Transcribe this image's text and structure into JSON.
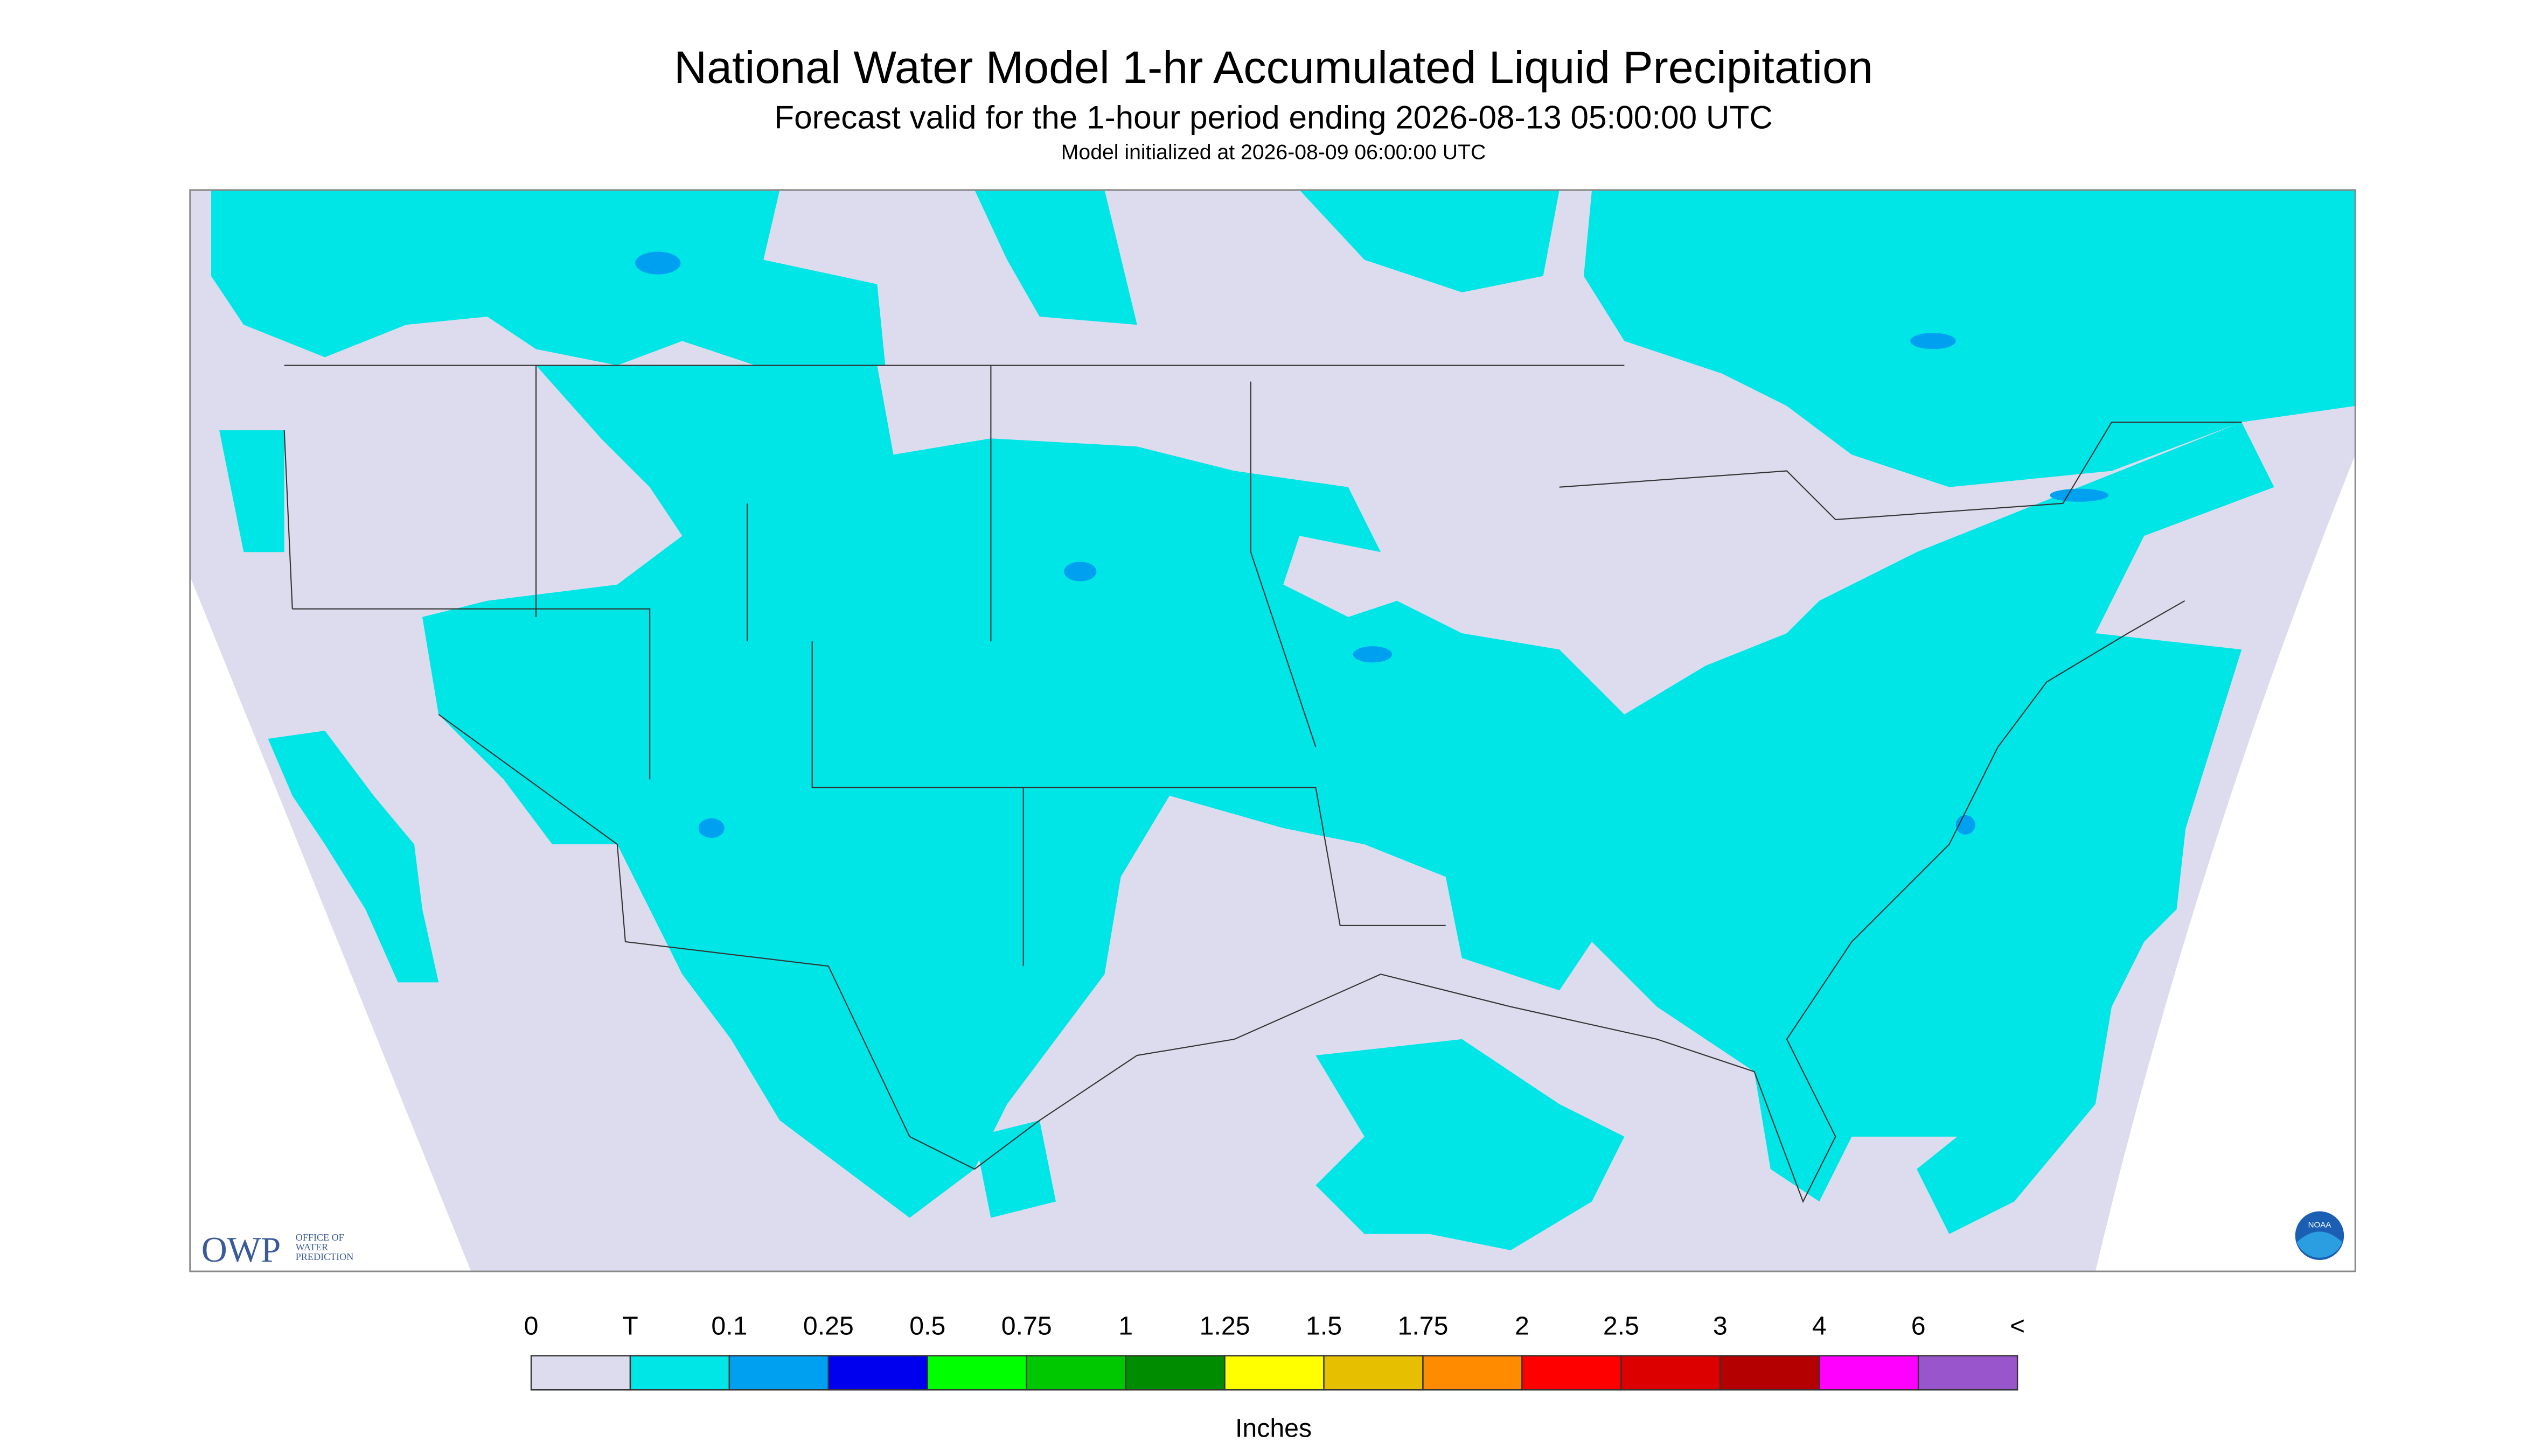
{
  "title": "National Water Model 1-hr Accumulated Liquid Precipitation",
  "subtitle": "Forecast valid for the 1-hour period ending 2026-08-13 05:00:00 UTC",
  "initialized": "Model initialized at 2026-08-09 06:00:00 UTC",
  "legend": {
    "labels": [
      "0",
      "T",
      "0.1",
      "0.25",
      "0.5",
      "0.75",
      "1",
      "1.25",
      "1.5",
      "1.75",
      "2",
      "2.5",
      "3",
      "4",
      "6",
      "<"
    ],
    "colors": [
      "#dcdcee",
      "#00e5e5",
      "#00a0f0",
      "#0000ee",
      "#00ff00",
      "#00c800",
      "#008c00",
      "#ffff00",
      "#e6c000",
      "#ff8c00",
      "#ff0000",
      "#dc0000",
      "#b40000",
      "#ff00ff",
      "#9955cc"
    ],
    "units": "Inches"
  },
  "logo": {
    "owp": "OWP",
    "org": [
      "OFFICE OF",
      "WATER",
      "PREDICTION"
    ],
    "noaa": "NOAA"
  }
}
